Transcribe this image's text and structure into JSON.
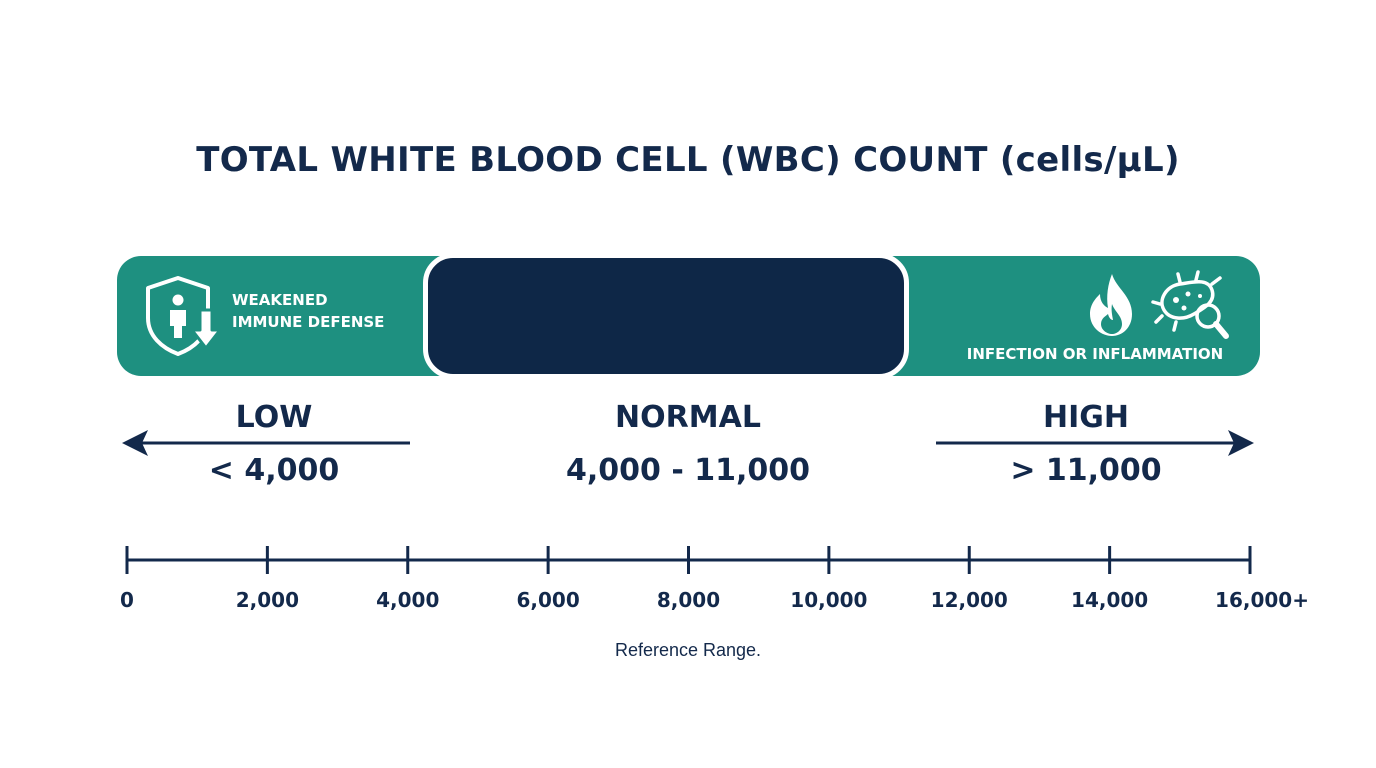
{
  "title": "TOTAL WHITE BLOOD CELL (WBC) COUNT (cells/µL)",
  "colors": {
    "teal": "#1e9080",
    "navy": "#0e2747",
    "text": "#13294b"
  },
  "bands": {
    "low": {
      "text_line1": "WEAKENED",
      "text_line2": "IMMUNE DEFENSE",
      "icon": "shield-person-down-icon"
    },
    "normal": {},
    "high": {
      "text": "INFECTION OR INFLAMMATION",
      "icons": [
        "flame-icon",
        "bacteria-magnifier-icon"
      ]
    }
  },
  "categories": {
    "low": {
      "label": "LOW",
      "range": "< 4,000"
    },
    "normal": {
      "label": "NORMAL",
      "range": "4,000 - 11,000"
    },
    "high": {
      "label": "HIGH",
      "range": "> 11,000"
    }
  },
  "axis": {
    "min": 0,
    "max": 16000,
    "ticks": [
      {
        "value": 0,
        "label": "0"
      },
      {
        "value": 2000,
        "label": "2,000"
      },
      {
        "value": 4000,
        "label": "4,000"
      },
      {
        "value": 6000,
        "label": "6,000"
      },
      {
        "value": 8000,
        "label": "8,000"
      },
      {
        "value": 10000,
        "label": "10,000"
      },
      {
        "value": 12000,
        "label": "12,000"
      },
      {
        "value": 14000,
        "label": "14,000"
      },
      {
        "value": 16000,
        "label": "16,000+"
      }
    ]
  },
  "footer": "Reference Range."
}
